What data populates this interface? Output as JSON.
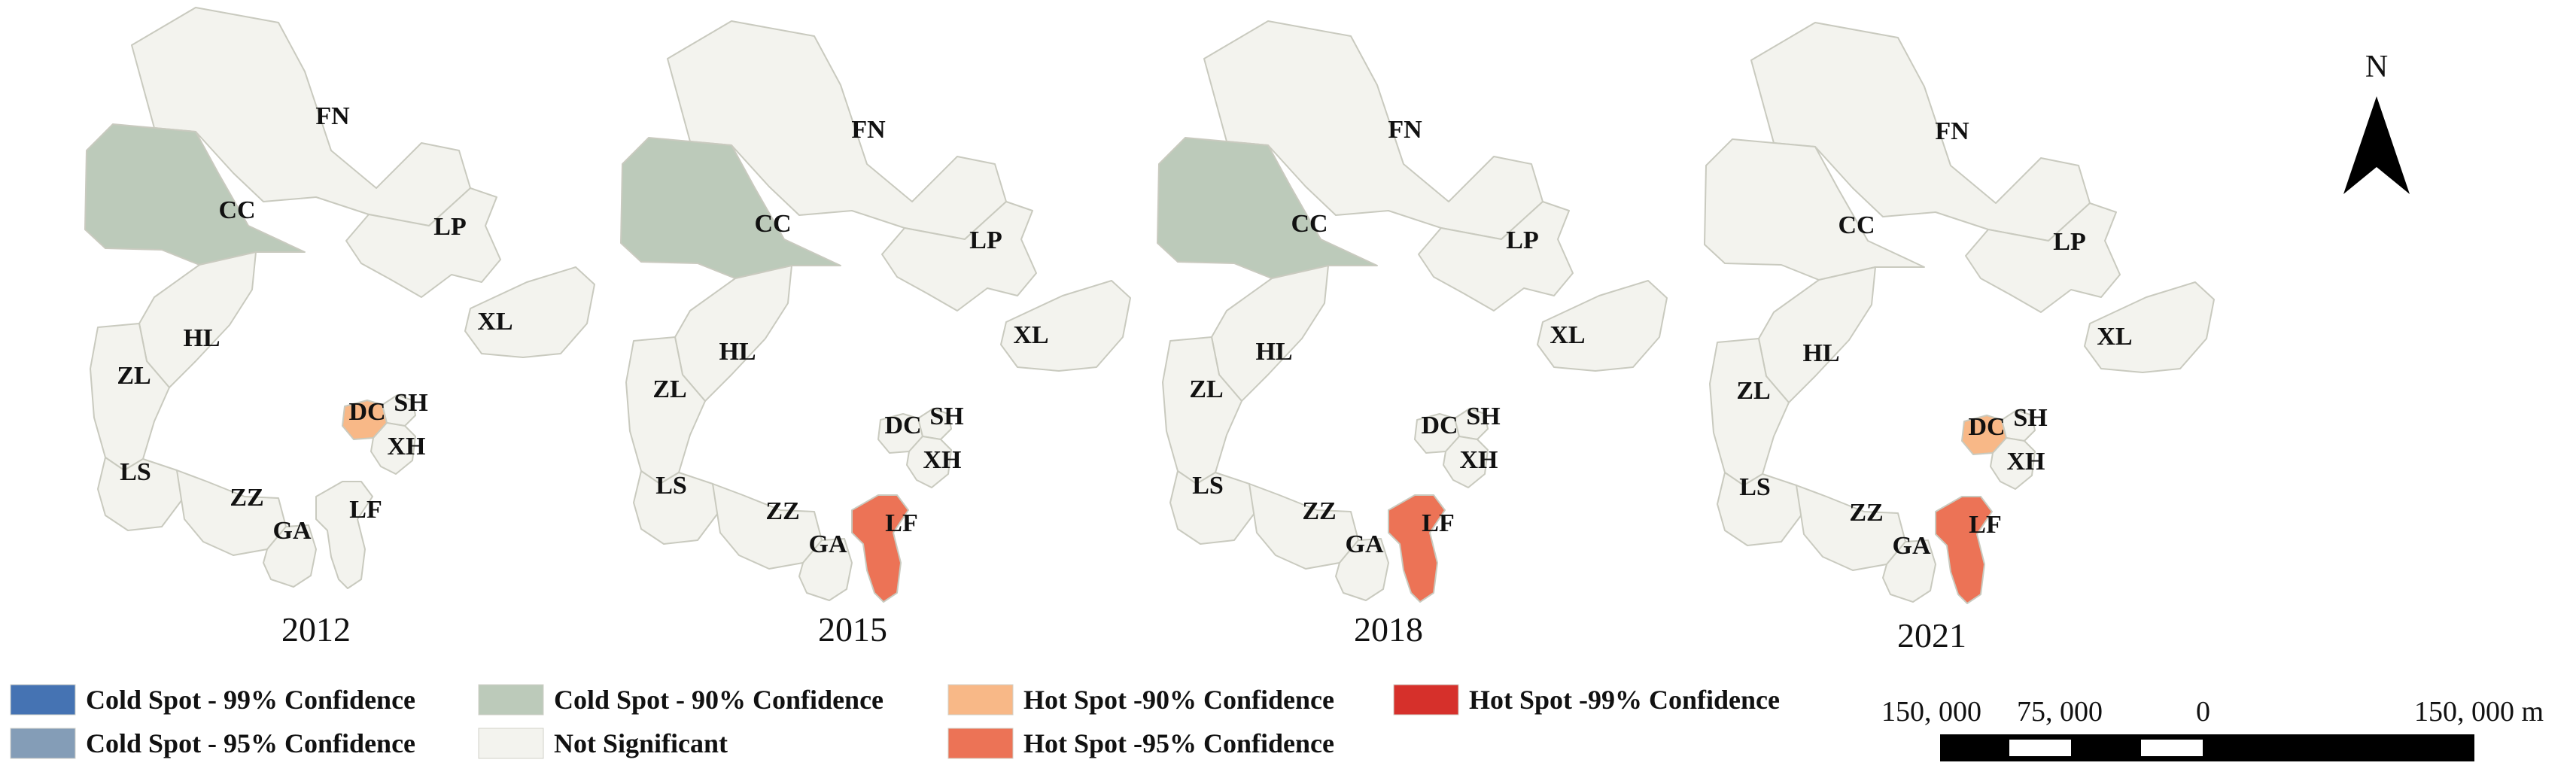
{
  "panels": [
    {
      "year": "2012",
      "classes": {
        "CC": "cold90",
        "DC": "hot90"
      }
    },
    {
      "year": "2015",
      "classes": {
        "CC": "cold90",
        "LF": "hot95"
      }
    },
    {
      "year": "2018",
      "classes": {
        "CC": "cold90",
        "LF": "hot95"
      }
    },
    {
      "year": "2021",
      "classes": {
        "DC": "hot90",
        "LF": "hot95"
      }
    }
  ],
  "regions": [
    "FN",
    "CC",
    "LP",
    "XL",
    "HL",
    "ZL",
    "LS",
    "ZZ",
    "GA",
    "LF",
    "DC",
    "SH",
    "XH"
  ],
  "legend": [
    {
      "key": "cold99",
      "label": "Cold Spot - 99% Confidence",
      "color": "#4573b3"
    },
    {
      "key": "cold95",
      "label": "Cold Spot - 95% Confidence",
      "color": "#849db7"
    },
    {
      "key": "cold90",
      "label": "Cold Spot - 90% Confidence",
      "color": "#bccaba"
    },
    {
      "key": "ns",
      "label": "Not Significant",
      "color": "#f3f3ee"
    },
    {
      "key": "hot90",
      "label": "Hot Spot -90% Confidence",
      "color": "#f8b887"
    },
    {
      "key": "hot95",
      "label": "Hot Spot -95% Confidence",
      "color": "#ec7356"
    },
    {
      "key": "hot99",
      "label": "Hot Spot -99% Confidence",
      "color": "#d6302b"
    }
  ],
  "north": {
    "label": "N"
  },
  "scale_bar": {
    "labels": [
      "150, 000",
      "75, 000",
      "0",
      "150, 000 m"
    ]
  }
}
